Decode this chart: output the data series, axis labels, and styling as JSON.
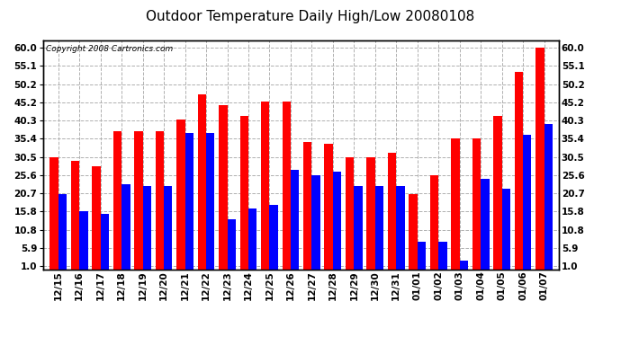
{
  "title": "Outdoor Temperature Daily High/Low 20080108",
  "copyright": "Copyright 2008 Cartronics.com",
  "categories": [
    "12/15",
    "12/16",
    "12/17",
    "12/18",
    "12/19",
    "12/20",
    "12/21",
    "12/22",
    "12/23",
    "12/24",
    "12/25",
    "12/26",
    "12/27",
    "12/28",
    "12/29",
    "12/30",
    "12/31",
    "01/01",
    "01/02",
    "01/03",
    "01/04",
    "01/05",
    "01/06",
    "01/07"
  ],
  "highs": [
    30.5,
    29.5,
    28.0,
    37.5,
    37.5,
    37.5,
    40.5,
    47.5,
    44.5,
    41.5,
    45.5,
    45.5,
    34.5,
    34.0,
    30.5,
    30.5,
    31.5,
    20.5,
    25.5,
    35.5,
    35.5,
    41.5,
    53.5,
    60.0
  ],
  "lows": [
    20.5,
    15.8,
    15.0,
    23.0,
    22.5,
    22.5,
    37.0,
    37.0,
    13.5,
    16.5,
    17.5,
    27.0,
    25.5,
    26.5,
    22.5,
    22.5,
    22.5,
    7.5,
    7.5,
    2.5,
    24.5,
    22.0,
    36.5,
    39.5
  ],
  "high_color": "#ff0000",
  "low_color": "#0000ff",
  "bg_color": "#ffffff",
  "plot_bg_color": "#ffffff",
  "grid_color": "#b0b0b0",
  "yticks": [
    1.0,
    5.9,
    10.8,
    15.8,
    20.7,
    25.6,
    30.5,
    35.4,
    40.3,
    45.2,
    50.2,
    55.1,
    60.0
  ],
  "ylim": [
    0,
    62
  ],
  "title_fontsize": 11,
  "tick_fontsize": 7.5,
  "copyright_fontsize": 6.5,
  "bar_width": 0.4
}
